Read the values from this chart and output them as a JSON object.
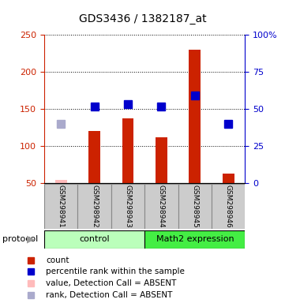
{
  "title": "GDS3436 / 1382187_at",
  "samples": [
    "GSM298941",
    "GSM298942",
    "GSM298943",
    "GSM298944",
    "GSM298945",
    "GSM298946"
  ],
  "bar_values": [
    null,
    120,
    138,
    112,
    230,
    63
  ],
  "bar_absent_values": [
    55,
    null,
    null,
    null,
    null,
    null
  ],
  "rank_values": [
    null,
    153,
    157,
    153,
    168,
    130
  ],
  "rank_absent_values": [
    130,
    null,
    null,
    null,
    null,
    null
  ],
  "bar_color": "#cc2200",
  "bar_absent_color": "#ffbbbb",
  "rank_color": "#0000cc",
  "rank_absent_color": "#aaaacc",
  "ylim_left": [
    50,
    250
  ],
  "ylim_right": [
    0,
    100
  ],
  "left_ticks": [
    50,
    100,
    150,
    200,
    250
  ],
  "right_ticks": [
    0,
    25,
    50,
    75,
    100
  ],
  "right_tick_labels": [
    "0",
    "25",
    "50",
    "75",
    "100%"
  ],
  "groups": [
    {
      "label": "control",
      "start": 0,
      "end": 3,
      "color": "#bbffbb"
    },
    {
      "label": "Math2 expression",
      "start": 3,
      "end": 6,
      "color": "#44ee44"
    }
  ],
  "protocol_label": "protocol",
  "legend_items": [
    {
      "label": "count",
      "color": "#cc2200"
    },
    {
      "label": "percentile rank within the sample",
      "color": "#0000cc"
    },
    {
      "label": "value, Detection Call = ABSENT",
      "color": "#ffbbbb"
    },
    {
      "label": "rank, Detection Call = ABSENT",
      "color": "#aaaacc"
    }
  ],
  "bar_width": 0.35,
  "marker_size": 7,
  "sample_box_color": "#cccccc",
  "sample_box_edge": "#888888"
}
